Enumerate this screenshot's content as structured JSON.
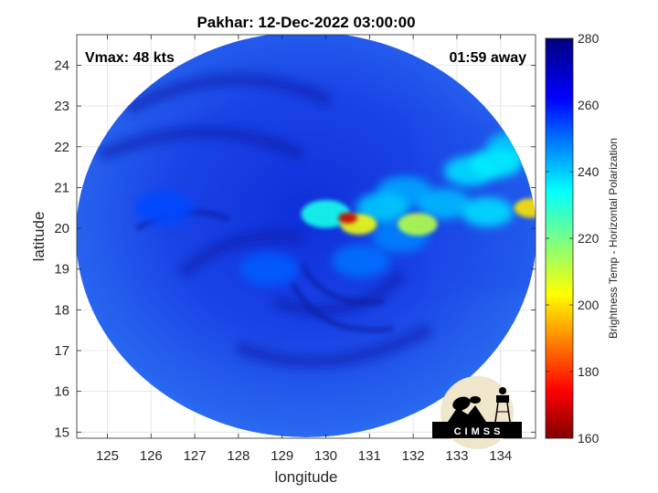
{
  "chart_data": {
    "type": "heatmap",
    "title": "Pakhar: 12-Dec-2022 03:00:00",
    "xlabel": "longitude",
    "ylabel": "latitude",
    "xlim": [
      124.3,
      134.8
    ],
    "ylim": [
      14.85,
      24.75
    ],
    "xticks": [
      125,
      126,
      127,
      128,
      129,
      130,
      131,
      132,
      133,
      134
    ],
    "yticks": [
      15,
      16,
      17,
      18,
      19,
      20,
      21,
      22,
      23,
      24
    ],
    "xtick_labels": [
      "125",
      "126",
      "127",
      "128",
      "129",
      "130",
      "131",
      "132",
      "133",
      "134"
    ],
    "ytick_labels": [
      "15",
      "16",
      "17",
      "18",
      "19",
      "20",
      "21",
      "22",
      "23",
      "24"
    ],
    "grid": true,
    "annotations": {
      "vmax": "Vmax: 48 kts",
      "time_away": "01:59 away"
    },
    "colorbar": {
      "label": "Brightness Temp - Horizontal Polarization",
      "range": [
        160,
        280
      ],
      "ticks": [
        160,
        180,
        200,
        220,
        240,
        260,
        280
      ],
      "tick_labels": [
        "160",
        "180",
        "200",
        "220",
        "240",
        "260",
        "280"
      ],
      "colormap": "jet"
    },
    "swath": {
      "center": [
        129.5,
        19.7
      ],
      "background_value": 262
    },
    "features": [
      {
        "feature": "deep convection core",
        "lon": 130.5,
        "lat": 20.25,
        "value": 168
      },
      {
        "feature": "convection",
        "lon": 130.75,
        "lat": 20.1,
        "value": 205
      },
      {
        "feature": "convective band",
        "lon": 130.0,
        "lat": 20.35,
        "value": 232
      },
      {
        "feature": "convective band",
        "lon": 131.3,
        "lat": 20.5,
        "value": 240
      },
      {
        "feature": "convective band",
        "lon": 131.8,
        "lat": 20.9,
        "value": 244
      },
      {
        "feature": "convective band",
        "lon": 131.7,
        "lat": 19.8,
        "value": 248
      },
      {
        "feature": "convective band",
        "lon": 130.8,
        "lat": 19.2,
        "value": 250
      },
      {
        "feature": "rainband",
        "lon": 132.1,
        "lat": 20.1,
        "value": 212
      },
      {
        "feature": "cloud cluster",
        "lon": 132.7,
        "lat": 20.6,
        "value": 242
      },
      {
        "feature": "cloud cluster",
        "lon": 133.3,
        "lat": 21.4,
        "value": 238
      },
      {
        "feature": "cloud cluster",
        "lon": 133.9,
        "lat": 21.6,
        "value": 236
      },
      {
        "feature": "cloud cluster",
        "lon": 134.3,
        "lat": 22.0,
        "value": 240
      },
      {
        "feature": "cloud cluster",
        "lon": 134.7,
        "lat": 20.5,
        "value": 200
      },
      {
        "feature": "cloud cluster",
        "lon": 133.7,
        "lat": 20.4,
        "value": 238
      },
      {
        "feature": "cloud cluster",
        "lon": 128.7,
        "lat": 19.0,
        "value": 252
      },
      {
        "feature": "cloud cluster",
        "lon": 126.3,
        "lat": 20.5,
        "value": 254
      }
    ]
  },
  "logo": {
    "text": "CIMSS"
  }
}
